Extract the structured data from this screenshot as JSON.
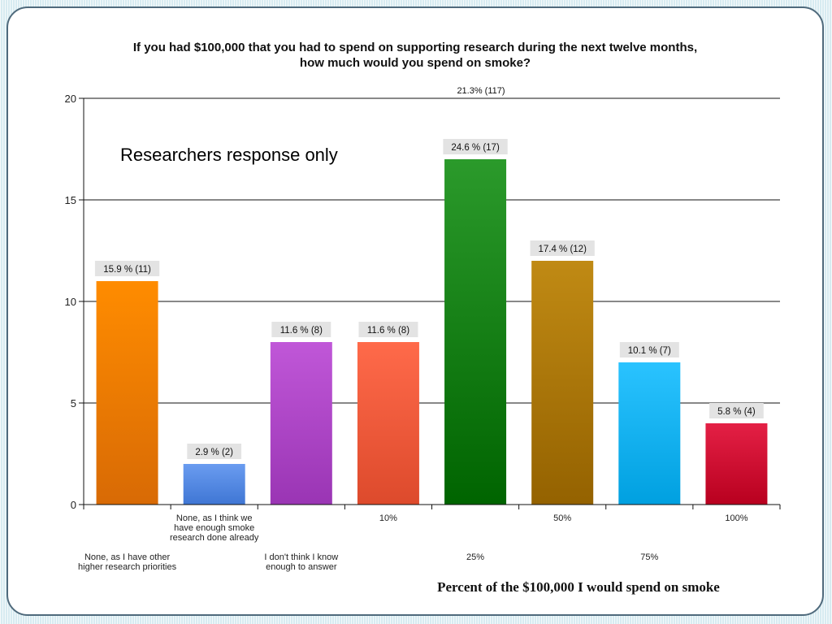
{
  "chart_data": {
    "type": "bar",
    "title": [
      "If you had $100,000 that you had to spend on supporting research during the next twelve months,",
      "how much would you spend on smoke?"
    ],
    "subtitle": "Researchers response only",
    "annotation": "21.3% (117)",
    "xlabel": "Percent of the $100,000 I would spend on smoke",
    "ylabel": "",
    "ylim": [
      0,
      20
    ],
    "yticks": [
      "0",
      "5",
      "10",
      "15",
      "20"
    ],
    "ytick_values": [
      0,
      5,
      10,
      15,
      20
    ],
    "grid": true,
    "categories": [
      [
        "None, as I have other",
        "higher research priorities"
      ],
      [
        "None, as I think we",
        "have enough smoke",
        "research done already"
      ],
      [
        "I don't think I know",
        "enough to answer"
      ],
      [
        "10%"
      ],
      [
        "25%"
      ],
      [
        "50%"
      ],
      [
        "75%"
      ],
      [
        "100%"
      ]
    ],
    "values": [
      11,
      2,
      8,
      8,
      17,
      12,
      7,
      4
    ],
    "data_labels": [
      "15.9 % (11)",
      "2.9 % (2)",
      "11.6 % (8)",
      "11.6 % (8)",
      "24.6 % (17)",
      "17.4 % (12)",
      "10.1 % (7)",
      "5.8 % (4)"
    ],
    "colors": [
      [
        "#ff8c00",
        "#d86a05"
      ],
      [
        "#6a9cf0",
        "#3f76d4"
      ],
      [
        "#c057d8",
        "#9a35b4"
      ],
      [
        "#ff6a4a",
        "#dd4a2c"
      ],
      [
        "#2b9a2b",
        "#006400"
      ],
      [
        "#c08a14",
        "#946200"
      ],
      [
        "#2ac3ff",
        "#00a0e0"
      ],
      [
        "#e42045",
        "#b8001f"
      ]
    ]
  }
}
